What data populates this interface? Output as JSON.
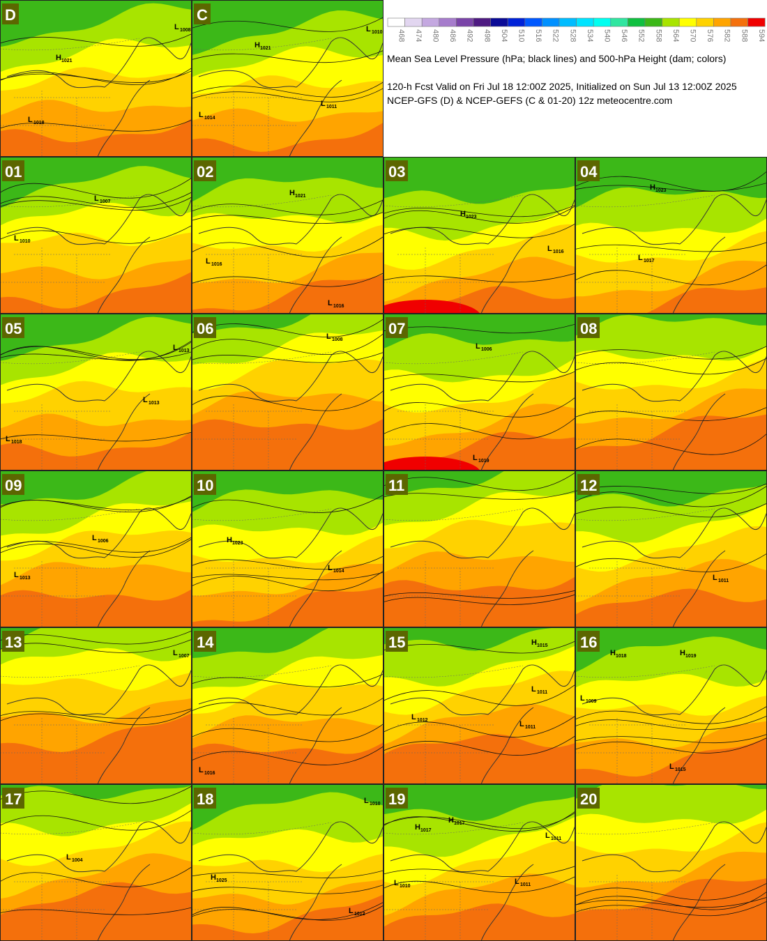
{
  "legend": {
    "levels": [
      {
        "label": "468",
        "color": "#ffffff"
      },
      {
        "label": "474",
        "color": "#e2d6f0"
      },
      {
        "label": "480",
        "color": "#c4a8e0"
      },
      {
        "label": "486",
        "color": "#a67ccc"
      },
      {
        "label": "492",
        "color": "#7a44a8"
      },
      {
        "label": "498",
        "color": "#4e1a82"
      },
      {
        "label": "504",
        "color": "#0a0a96"
      },
      {
        "label": "510",
        "color": "#0022d8"
      },
      {
        "label": "516",
        "color": "#0058ff"
      },
      {
        "label": "522",
        "color": "#0090ff"
      },
      {
        "label": "528",
        "color": "#00bcff"
      },
      {
        "label": "534",
        "color": "#00e4ff"
      },
      {
        "label": "540",
        "color": "#00fff0"
      },
      {
        "label": "546",
        "color": "#30e6a0"
      },
      {
        "label": "552",
        "color": "#10c040"
      },
      {
        "label": "558",
        "color": "#3cb818"
      },
      {
        "label": "564",
        "color": "#a8e400"
      },
      {
        "label": "570",
        "color": "#ffff00"
      },
      {
        "label": "576",
        "color": "#ffd200"
      },
      {
        "label": "582",
        "color": "#ffa400"
      },
      {
        "label": "588",
        "color": "#f4700c"
      },
      {
        "label": "594",
        "color": "#f00000"
      }
    ]
  },
  "description": {
    "title": "Mean Sea Level Pressure (hPa; black lines) and 500-hPa Height (dam; colors)",
    "valid": "120-h Fcst Valid on Fri Jul 18 12:00Z 2025, Initialized on Sun Jul 13 12:00Z 2025",
    "source": "NCEP-GFS (D) & NCEP-GEFS (C & 01-20) 12z meteocentre.com"
  },
  "panels": [
    {
      "label": "D",
      "centers": [
        {
          "type": "L",
          "value": "1008"
        },
        {
          "type": "H",
          "value": "1021"
        },
        {
          "type": "L",
          "value": "1018"
        }
      ]
    },
    {
      "label": "C",
      "centers": [
        {
          "type": "H",
          "value": "1021"
        },
        {
          "type": "L",
          "value": "1010"
        },
        {
          "type": "L",
          "value": "1011"
        },
        {
          "type": "L",
          "value": "1014"
        }
      ]
    },
    {
      "label": "01",
      "centers": [
        {
          "type": "L",
          "value": "1007"
        },
        {
          "type": "L",
          "value": "1010"
        }
      ]
    },
    {
      "label": "02",
      "centers": [
        {
          "type": "H",
          "value": "1021"
        },
        {
          "type": "L",
          "value": "1016"
        },
        {
          "type": "L",
          "value": "1016"
        }
      ]
    },
    {
      "label": "03",
      "centers": [
        {
          "type": "H",
          "value": "1023"
        },
        {
          "type": "L",
          "value": "1016"
        }
      ]
    },
    {
      "label": "04",
      "centers": [
        {
          "type": "H",
          "value": "1023"
        },
        {
          "type": "L",
          "value": "1017"
        }
      ]
    },
    {
      "label": "05",
      "centers": [
        {
          "type": "L",
          "value": "1013"
        },
        {
          "type": "L",
          "value": "1013"
        },
        {
          "type": "L",
          "value": "1018"
        }
      ]
    },
    {
      "label": "06",
      "centers": [
        {
          "type": "L",
          "value": "1008"
        }
      ]
    },
    {
      "label": "07",
      "centers": [
        {
          "type": "L",
          "value": "1006"
        },
        {
          "type": "L",
          "value": "1019"
        }
      ]
    },
    {
      "label": "08",
      "centers": []
    },
    {
      "label": "09",
      "centers": [
        {
          "type": "L",
          "value": "1006"
        },
        {
          "type": "L",
          "value": "1013"
        }
      ]
    },
    {
      "label": "10",
      "centers": [
        {
          "type": "H",
          "value": "1023"
        },
        {
          "type": "L",
          "value": "1014"
        }
      ]
    },
    {
      "label": "11",
      "centers": []
    },
    {
      "label": "12",
      "centers": [
        {
          "type": "L",
          "value": "1011"
        }
      ]
    },
    {
      "label": "13",
      "centers": [
        {
          "type": "L",
          "value": "1007"
        }
      ]
    },
    {
      "label": "14",
      "centers": [
        {
          "type": "L",
          "value": "1016"
        }
      ]
    },
    {
      "label": "15",
      "centers": [
        {
          "type": "H",
          "value": "1015"
        },
        {
          "type": "L",
          "value": "1011"
        },
        {
          "type": "L",
          "value": "1012"
        },
        {
          "type": "L",
          "value": "1011"
        }
      ]
    },
    {
      "label": "16",
      "centers": [
        {
          "type": "H",
          "value": "1018"
        },
        {
          "type": "H",
          "value": "1019"
        },
        {
          "type": "L",
          "value": "1009"
        },
        {
          "type": "L",
          "value": "1015"
        }
      ]
    },
    {
      "label": "17",
      "centers": [
        {
          "type": "L",
          "value": "1004"
        }
      ]
    },
    {
      "label": "18",
      "centers": [
        {
          "type": "L",
          "value": "1010"
        },
        {
          "type": "H",
          "value": "1025"
        },
        {
          "type": "L",
          "value": "1012"
        }
      ]
    },
    {
      "label": "19",
      "centers": [
        {
          "type": "H",
          "value": "1017"
        },
        {
          "type": "H",
          "value": "1017"
        },
        {
          "type": "L",
          "value": "1011"
        },
        {
          "type": "L",
          "value": "1010"
        },
        {
          "type": "L",
          "value": "1011"
        }
      ]
    },
    {
      "label": "20",
      "centers": []
    }
  ]
}
